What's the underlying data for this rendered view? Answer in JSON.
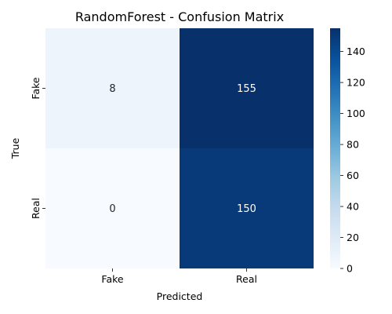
{
  "chart_data": {
    "type": "heatmap",
    "title": "RandomForest - Confusion Matrix",
    "xlabel": "Predicted",
    "ylabel": "True",
    "x_categories": [
      "Fake",
      "Real"
    ],
    "y_categories": [
      "Fake",
      "Real"
    ],
    "values": [
      [
        8,
        155
      ],
      [
        0,
        150
      ]
    ],
    "colormap": "Blues",
    "colorbar": {
      "range": [
        0,
        155
      ],
      "ticks": [
        0,
        20,
        40,
        60,
        80,
        100,
        120,
        140
      ]
    },
    "grid": false
  }
}
